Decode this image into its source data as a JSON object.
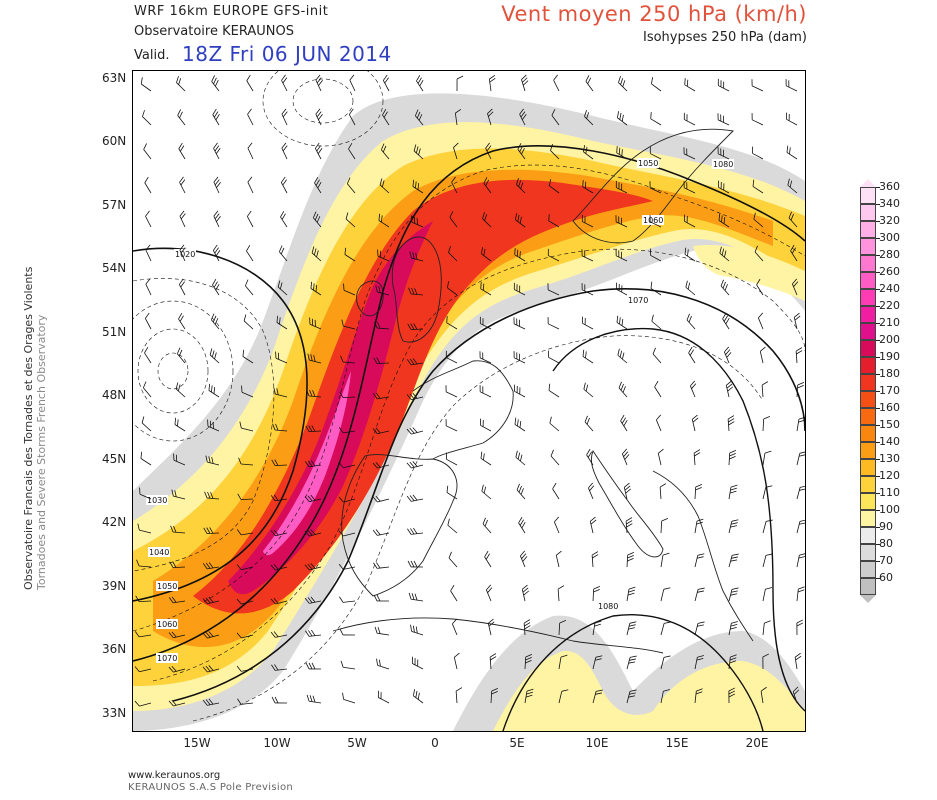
{
  "header": {
    "model": "WRF 16km EUROPE   GFS-init",
    "organization": "Observatoire KERAUNOS",
    "valid_label": "Valid.",
    "valid_date": "18Z Fri 06 JUN 2014",
    "title": "Vent moyen 250 hPa (km/h)",
    "subtitle": "Isohypses 250 hPa (dam)"
  },
  "side_credit": {
    "line1": "Observatoire Francais des Tornades et des Orages Violents",
    "line2": "Tornadoes and Severe Storms French Observatory"
  },
  "axes": {
    "lat_labels": [
      "63N",
      "60N",
      "57N",
      "54N",
      "51N",
      "48N",
      "45N",
      "42N",
      "39N",
      "36N",
      "33N"
    ],
    "lon_labels": [
      "15W",
      "10W",
      "5W",
      "0",
      "5E",
      "10E",
      "15E",
      "20E"
    ]
  },
  "legend": {
    "values": [
      "360",
      "340",
      "320",
      "300",
      "280",
      "260",
      "240",
      "220",
      "210",
      "200",
      "190",
      "180",
      "170",
      "160",
      "150",
      "140",
      "130",
      "120",
      "110",
      "100",
      "90",
      "80",
      "70",
      "60"
    ],
    "colors": [
      "#ffe1f6",
      "#ffc8ef",
      "#ffaee6",
      "#ff94dc",
      "#ff78d0",
      "#ff5cc4",
      "#ff3cb4",
      "#f01ea0",
      "#e0108c",
      "#d80a5a",
      "#e41e2c",
      "#f0361e",
      "#f45016",
      "#f76a12",
      "#f8860f",
      "#fb9e16",
      "#fdba22",
      "#fdd23a",
      "#fde65a",
      "#fef5a2",
      "#ececec",
      "#dcdcdc",
      "#cdcdcd",
      "#c0c0c0"
    ]
  },
  "map": {
    "wind_colors": {
      "c60": "#dadada",
      "c80": "#fff3a4",
      "c110": "#fdd23a",
      "c140": "#fb9e16",
      "c170": "#f0361e",
      "c200": "#d80a5a",
      "c240": "#ff5cc4"
    },
    "contour_labels": [
      "1020",
      "1030",
      "1040",
      "1050",
      "1060",
      "1070",
      "1080",
      "1050",
      "1060",
      "1070",
      "1080",
      "1020"
    ]
  },
  "footer": {
    "url": "www.keraunos.org",
    "company": "KERAUNOS S.A.S Pole Prevision"
  }
}
